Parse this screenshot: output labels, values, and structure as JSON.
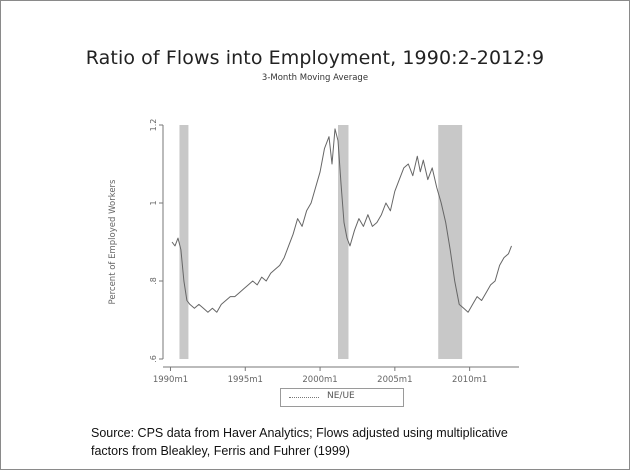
{
  "slide": {
    "title": "Ratio of Flows into Employment, 1990:2-2012:9",
    "subtitle": "3-Month Moving Average",
    "source_line1": "Source: CPS data from Haver Analytics; Flows adjusted using multiplicative",
    "source_line2": "factors from Bleakley, Ferris and Fuhrer (1999)"
  },
  "chart_data": {
    "type": "line",
    "ylabel": "Percent of Employed Workers",
    "xlabel": "",
    "ylim": [
      0.6,
      1.2
    ],
    "xlim": [
      1989.5,
      2013.3
    ],
    "y_ticks": [
      {
        "value": 0.6,
        "label": ".6"
      },
      {
        "value": 0.8,
        "label": ".8"
      },
      {
        "value": 1.0,
        "label": "1"
      },
      {
        "value": 1.2,
        "label": "1.2"
      }
    ],
    "x_ticks": [
      {
        "value": 1990.0,
        "label": "1990m1"
      },
      {
        "value": 1995.0,
        "label": "1995m1"
      },
      {
        "value": 2000.0,
        "label": "2000m1"
      },
      {
        "value": 2005.0,
        "label": "2005m1"
      },
      {
        "value": 2010.0,
        "label": "2010m1"
      }
    ],
    "grid": false,
    "legend_position": "bottom-center",
    "colors": {
      "line": "#666666",
      "shade": "#c8c8c8",
      "axis": "#777777"
    },
    "recessions": [
      {
        "start": 1990.6,
        "end": 1991.2
      },
      {
        "start": 2001.2,
        "end": 2001.9
      },
      {
        "start": 2007.9,
        "end": 2009.5
      }
    ],
    "series": [
      {
        "name": "NE/UE",
        "points": [
          [
            1990.1,
            0.9
          ],
          [
            1990.3,
            0.89
          ],
          [
            1990.5,
            0.91
          ],
          [
            1990.7,
            0.88
          ],
          [
            1990.9,
            0.8
          ],
          [
            1991.1,
            0.75
          ],
          [
            1991.3,
            0.74
          ],
          [
            1991.6,
            0.73
          ],
          [
            1991.9,
            0.74
          ],
          [
            1992.2,
            0.73
          ],
          [
            1992.5,
            0.72
          ],
          [
            1992.8,
            0.73
          ],
          [
            1993.1,
            0.72
          ],
          [
            1993.4,
            0.74
          ],
          [
            1993.7,
            0.75
          ],
          [
            1994.0,
            0.76
          ],
          [
            1994.3,
            0.76
          ],
          [
            1994.6,
            0.77
          ],
          [
            1994.9,
            0.78
          ],
          [
            1995.2,
            0.79
          ],
          [
            1995.5,
            0.8
          ],
          [
            1995.8,
            0.79
          ],
          [
            1996.1,
            0.81
          ],
          [
            1996.4,
            0.8
          ],
          [
            1996.7,
            0.82
          ],
          [
            1997.0,
            0.83
          ],
          [
            1997.3,
            0.84
          ],
          [
            1997.6,
            0.86
          ],
          [
            1997.9,
            0.89
          ],
          [
            1998.2,
            0.92
          ],
          [
            1998.5,
            0.96
          ],
          [
            1998.8,
            0.94
          ],
          [
            1999.1,
            0.98
          ],
          [
            1999.4,
            1.0
          ],
          [
            1999.7,
            1.04
          ],
          [
            2000.0,
            1.08
          ],
          [
            2000.3,
            1.14
          ],
          [
            2000.6,
            1.17
          ],
          [
            2000.8,
            1.1
          ],
          [
            2001.0,
            1.19
          ],
          [
            2001.2,
            1.16
          ],
          [
            2001.4,
            1.05
          ],
          [
            2001.6,
            0.95
          ],
          [
            2001.8,
            0.91
          ],
          [
            2002.0,
            0.89
          ],
          [
            2002.3,
            0.93
          ],
          [
            2002.6,
            0.96
          ],
          [
            2002.9,
            0.94
          ],
          [
            2003.2,
            0.97
          ],
          [
            2003.5,
            0.94
          ],
          [
            2003.8,
            0.95
          ],
          [
            2004.1,
            0.97
          ],
          [
            2004.4,
            1.0
          ],
          [
            2004.7,
            0.98
          ],
          [
            2005.0,
            1.03
          ],
          [
            2005.3,
            1.06
          ],
          [
            2005.6,
            1.09
          ],
          [
            2005.9,
            1.1
          ],
          [
            2006.2,
            1.07
          ],
          [
            2006.5,
            1.12
          ],
          [
            2006.7,
            1.08
          ],
          [
            2006.9,
            1.11
          ],
          [
            2007.2,
            1.06
          ],
          [
            2007.5,
            1.09
          ],
          [
            2007.8,
            1.04
          ],
          [
            2008.1,
            1.0
          ],
          [
            2008.4,
            0.95
          ],
          [
            2008.7,
            0.88
          ],
          [
            2009.0,
            0.8
          ],
          [
            2009.3,
            0.74
          ],
          [
            2009.6,
            0.73
          ],
          [
            2009.9,
            0.72
          ],
          [
            2010.2,
            0.74
          ],
          [
            2010.5,
            0.76
          ],
          [
            2010.8,
            0.75
          ],
          [
            2011.1,
            0.77
          ],
          [
            2011.4,
            0.79
          ],
          [
            2011.7,
            0.8
          ],
          [
            2012.0,
            0.84
          ],
          [
            2012.3,
            0.86
          ],
          [
            2012.6,
            0.87
          ],
          [
            2012.8,
            0.89
          ]
        ]
      }
    ]
  }
}
